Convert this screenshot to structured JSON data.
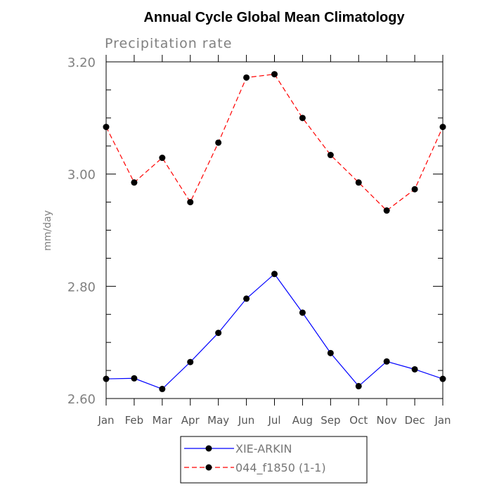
{
  "chart_data": {
    "type": "line",
    "title": "Annual Cycle Global Mean Climatology",
    "subtitle": "Precipitation rate",
    "xlabel": "",
    "ylabel": "mm/day",
    "ylim": [
      2.6,
      3.2
    ],
    "yticks": [
      "2.60",
      "2.80",
      "3.00",
      "3.20"
    ],
    "categories": [
      "Jan",
      "Feb",
      "Mar",
      "Apr",
      "May",
      "Jun",
      "Jul",
      "Aug",
      "Sep",
      "Oct",
      "Nov",
      "Dec",
      "Jan"
    ],
    "legend_position": "bottom-center",
    "series": [
      {
        "name": "XIE-ARKIN",
        "color": "#0000ff",
        "dash": "solid",
        "values": [
          2.635,
          2.636,
          2.617,
          2.665,
          2.717,
          2.778,
          2.822,
          2.753,
          2.681,
          2.622,
          2.666,
          2.652,
          2.635
        ]
      },
      {
        "name": "044_f1850 (1-1)",
        "color": "#ff0000",
        "dash": "dashed",
        "values": [
          3.084,
          2.985,
          3.029,
          2.95,
          3.056,
          3.172,
          3.178,
          3.1,
          3.034,
          2.985,
          2.935,
          2.973,
          3.084
        ]
      }
    ]
  }
}
